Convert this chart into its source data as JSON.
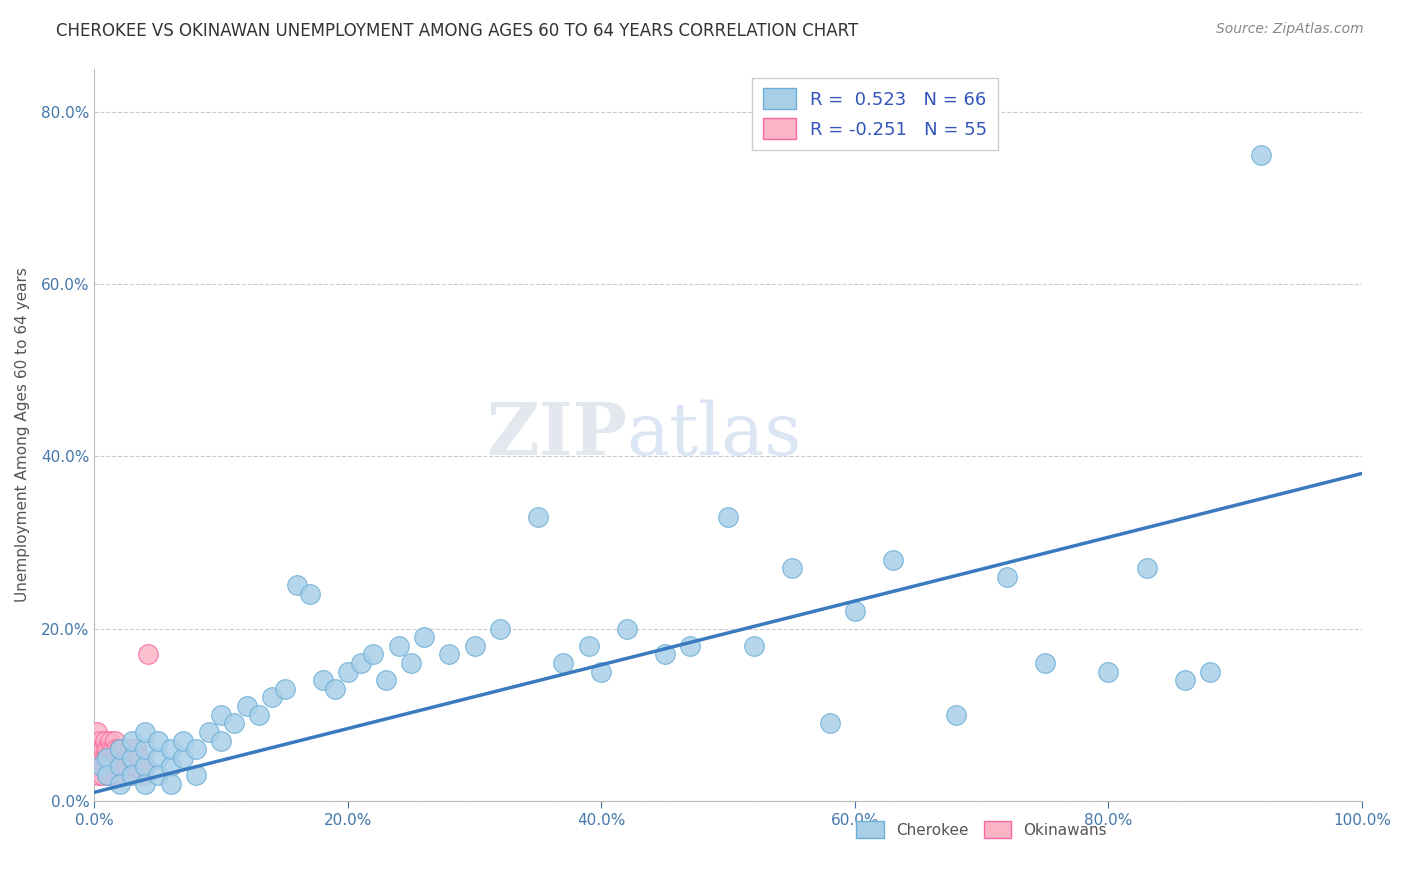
{
  "title": "CHEROKEE VS OKINAWAN UNEMPLOYMENT AMONG AGES 60 TO 64 YEARS CORRELATION CHART",
  "source": "Source: ZipAtlas.com",
  "ylabel_text": "Unemployment Among Ages 60 to 64 years",
  "xlim": [
    0.0,
    1.0
  ],
  "ylim": [
    0.0,
    0.85
  ],
  "xticks": [
    0.0,
    0.2,
    0.4,
    0.6,
    0.8,
    1.0
  ],
  "yticks": [
    0.0,
    0.2,
    0.4,
    0.6,
    0.8
  ],
  "cherokee_color": "#a8cfe8",
  "cherokee_edge_color": "#6baed6",
  "okinawan_color": "#fbb4c5",
  "okinawan_edge_color": "#f768a1",
  "line_color": "#3a7abf",
  "cherokee_R": 0.523,
  "cherokee_N": 66,
  "okinawan_R": -0.251,
  "okinawan_N": 55,
  "background_color": "#ffffff",
  "grid_color": "#cccccc",
  "title_color": "#333333",
  "source_color": "#888888",
  "tick_color": "#4477aa",
  "legend_text_color": "#3355bb",
  "watermark_color": "#ddeeff",
  "line_y_start": 0.01,
  "line_y_end": 0.38,
  "cherokee_x": [
    0.005,
    0.01,
    0.01,
    0.02,
    0.02,
    0.02,
    0.03,
    0.03,
    0.03,
    0.04,
    0.04,
    0.04,
    0.04,
    0.05,
    0.05,
    0.05,
    0.06,
    0.06,
    0.06,
    0.07,
    0.07,
    0.08,
    0.08,
    0.09,
    0.1,
    0.1,
    0.11,
    0.12,
    0.13,
    0.14,
    0.15,
    0.16,
    0.17,
    0.18,
    0.19,
    0.2,
    0.21,
    0.22,
    0.23,
    0.24,
    0.25,
    0.26,
    0.28,
    0.3,
    0.32,
    0.35,
    0.37,
    0.39,
    0.4,
    0.42,
    0.45,
    0.47,
    0.5,
    0.52,
    0.55,
    0.58,
    0.6,
    0.63,
    0.68,
    0.72,
    0.75,
    0.8,
    0.83,
    0.86,
    0.88,
    0.92
  ],
  "cherokee_y": [
    0.04,
    0.05,
    0.03,
    0.04,
    0.06,
    0.02,
    0.05,
    0.03,
    0.07,
    0.04,
    0.06,
    0.02,
    0.08,
    0.05,
    0.03,
    0.07,
    0.04,
    0.06,
    0.02,
    0.05,
    0.07,
    0.06,
    0.03,
    0.08,
    0.07,
    0.1,
    0.09,
    0.11,
    0.1,
    0.12,
    0.13,
    0.25,
    0.24,
    0.14,
    0.13,
    0.15,
    0.16,
    0.17,
    0.14,
    0.18,
    0.16,
    0.19,
    0.17,
    0.18,
    0.2,
    0.33,
    0.16,
    0.18,
    0.15,
    0.2,
    0.17,
    0.18,
    0.33,
    0.18,
    0.27,
    0.09,
    0.22,
    0.28,
    0.1,
    0.26,
    0.16,
    0.15,
    0.27,
    0.14,
    0.15,
    0.75
  ],
  "okinawan_x": [
    0.001,
    0.002,
    0.002,
    0.003,
    0.003,
    0.004,
    0.004,
    0.005,
    0.005,
    0.006,
    0.006,
    0.007,
    0.007,
    0.008,
    0.008,
    0.009,
    0.009,
    0.01,
    0.01,
    0.011,
    0.011,
    0.012,
    0.012,
    0.013,
    0.013,
    0.014,
    0.014,
    0.015,
    0.015,
    0.016,
    0.016,
    0.017,
    0.017,
    0.018,
    0.018,
    0.019,
    0.019,
    0.02,
    0.02,
    0.021,
    0.022,
    0.023,
    0.024,
    0.025,
    0.026,
    0.027,
    0.028,
    0.029,
    0.03,
    0.032,
    0.033,
    0.035,
    0.038,
    0.04,
    0.042
  ],
  "okinawan_y": [
    0.05,
    0.04,
    0.08,
    0.06,
    0.03,
    0.07,
    0.05,
    0.04,
    0.06,
    0.05,
    0.03,
    0.06,
    0.04,
    0.05,
    0.07,
    0.04,
    0.06,
    0.05,
    0.03,
    0.06,
    0.04,
    0.05,
    0.07,
    0.04,
    0.06,
    0.05,
    0.03,
    0.06,
    0.04,
    0.05,
    0.07,
    0.04,
    0.06,
    0.05,
    0.03,
    0.06,
    0.04,
    0.05,
    0.03,
    0.04,
    0.05,
    0.06,
    0.03,
    0.05,
    0.04,
    0.06,
    0.05,
    0.03,
    0.05,
    0.04,
    0.06,
    0.05,
    0.03,
    0.04,
    0.17
  ]
}
